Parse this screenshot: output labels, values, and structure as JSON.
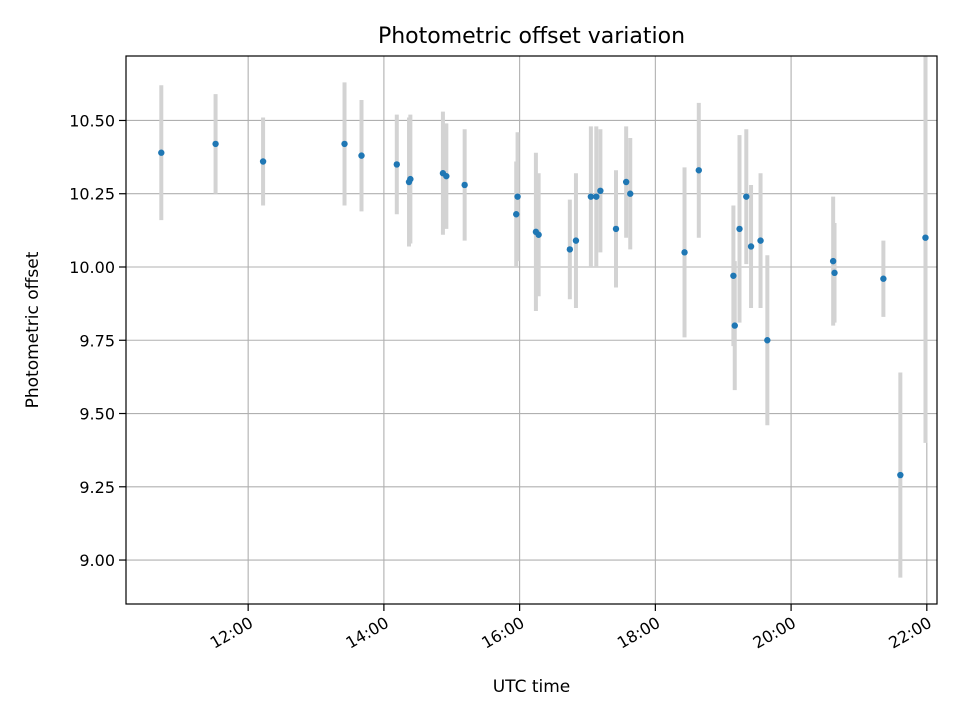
{
  "chart_data": {
    "type": "scatter",
    "title": "Photometric offset variation",
    "xlabel": "UTC time",
    "ylabel": "Photometric offset",
    "x_unit": "UTC hour",
    "xlim": [
      10.2,
      22.15
    ],
    "ylim": [
      8.85,
      10.72
    ],
    "grid": true,
    "x_ticks": [
      12,
      14,
      16,
      18,
      20,
      22
    ],
    "x_tick_labels": [
      "12:00",
      "14:00",
      "16:00",
      "18:00",
      "20:00",
      "22:00"
    ],
    "y_ticks": [
      9.0,
      9.25,
      9.5,
      9.75,
      10.0,
      10.25,
      10.5
    ],
    "y_tick_labels": [
      "9.00",
      "9.25",
      "9.50",
      "9.75",
      "10.00",
      "10.25",
      "10.50"
    ],
    "colors": {
      "point": "#1f77b4",
      "errorbar": "#d3d3d3",
      "grid": "#b0b0b0"
    },
    "points": [
      {
        "x": 10.72,
        "y": 10.39,
        "err": 0.23
      },
      {
        "x": 11.52,
        "y": 10.42,
        "err": 0.17
      },
      {
        "x": 12.22,
        "y": 10.36,
        "err": 0.15
      },
      {
        "x": 13.42,
        "y": 10.42,
        "err": 0.21
      },
      {
        "x": 13.67,
        "y": 10.38,
        "err": 0.19
      },
      {
        "x": 14.19,
        "y": 10.35,
        "err": 0.17
      },
      {
        "x": 14.37,
        "y": 10.29,
        "err": 0.22
      },
      {
        "x": 14.39,
        "y": 10.3,
        "err": 0.22
      },
      {
        "x": 14.87,
        "y": 10.32,
        "err": 0.21
      },
      {
        "x": 14.92,
        "y": 10.31,
        "err": 0.18
      },
      {
        "x": 15.19,
        "y": 10.28,
        "err": 0.19
      },
      {
        "x": 15.95,
        "y": 10.18,
        "err": 0.18
      },
      {
        "x": 15.97,
        "y": 10.24,
        "err": 0.22
      },
      {
        "x": 16.24,
        "y": 10.12,
        "err": 0.27
      },
      {
        "x": 16.28,
        "y": 10.11,
        "err": 0.21
      },
      {
        "x": 16.74,
        "y": 10.06,
        "err": 0.17
      },
      {
        "x": 16.83,
        "y": 10.09,
        "err": 0.23
      },
      {
        "x": 17.05,
        "y": 10.24,
        "err": 0.24
      },
      {
        "x": 17.13,
        "y": 10.24,
        "err": 0.24
      },
      {
        "x": 17.19,
        "y": 10.26,
        "err": 0.21
      },
      {
        "x": 17.42,
        "y": 10.13,
        "err": 0.2
      },
      {
        "x": 17.57,
        "y": 10.29,
        "err": 0.19
      },
      {
        "x": 17.63,
        "y": 10.25,
        "err": 0.19
      },
      {
        "x": 18.43,
        "y": 10.05,
        "err": 0.29
      },
      {
        "x": 18.64,
        "y": 10.33,
        "err": 0.23
      },
      {
        "x": 19.15,
        "y": 9.97,
        "err": 0.24
      },
      {
        "x": 19.17,
        "y": 9.8,
        "err": 0.22
      },
      {
        "x": 19.24,
        "y": 10.13,
        "err": 0.32
      },
      {
        "x": 19.34,
        "y": 10.24,
        "err": 0.23
      },
      {
        "x": 19.41,
        "y": 10.07,
        "err": 0.21
      },
      {
        "x": 19.55,
        "y": 10.09,
        "err": 0.23
      },
      {
        "x": 19.65,
        "y": 9.75,
        "err": 0.29
      },
      {
        "x": 20.62,
        "y": 10.02,
        "err": 0.22
      },
      {
        "x": 20.64,
        "y": 9.98,
        "err": 0.17
      },
      {
        "x": 21.36,
        "y": 9.96,
        "err": 0.13
      },
      {
        "x": 21.61,
        "y": 9.29,
        "err": 0.35
      },
      {
        "x": 21.98,
        "y": 10.1,
        "err": 0.7
      }
    ]
  }
}
